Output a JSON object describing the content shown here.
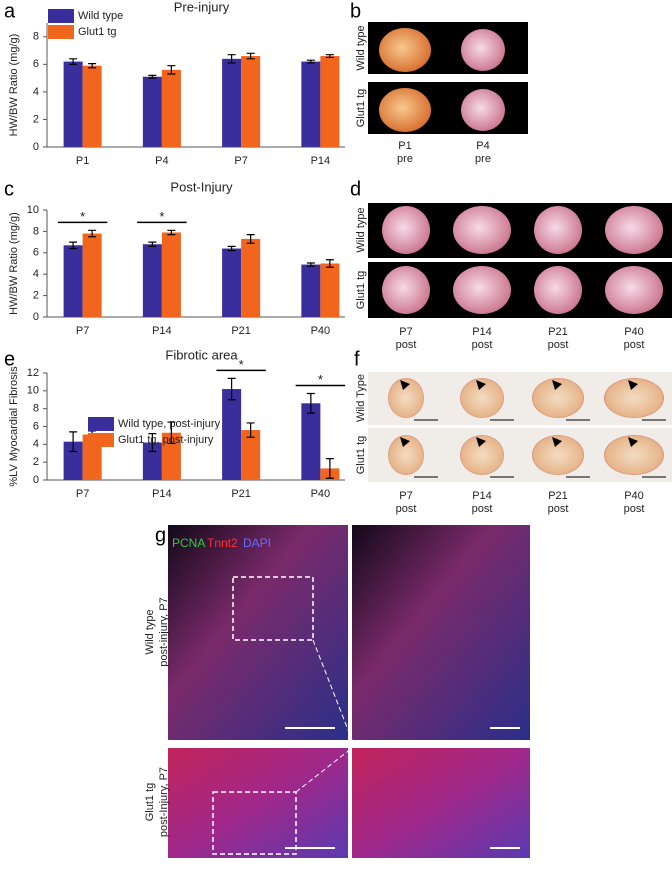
{
  "chart_data": [
    {
      "type": "bar",
      "panel": "a",
      "title": "Pre-injury",
      "ylabel": "HW/BW Ratio (mg/g)",
      "categories": [
        "P1",
        "P4",
        "P7",
        "P14"
      ],
      "series": [
        {
          "name": "Wild type",
          "color": "#3a2d9c",
          "values": [
            6.2,
            5.1,
            6.4,
            6.2
          ],
          "errors": [
            0.2,
            0.1,
            0.3,
            0.1
          ]
        },
        {
          "name": "Glut1 tg",
          "color": "#f2651c",
          "values": [
            5.9,
            5.6,
            6.6,
            6.6
          ],
          "errors": [
            0.15,
            0.3,
            0.2,
            0.1
          ]
        }
      ],
      "ylim": [
        0,
        9
      ],
      "yticks": [
        0,
        2,
        4,
        6,
        8
      ]
    },
    {
      "type": "bar",
      "panel": "c",
      "title": "Post-Injury",
      "ylabel": "HW/BW Ratio (mg/g)",
      "categories": [
        "P7",
        "P14",
        "P21",
        "P40"
      ],
      "series": [
        {
          "name": "Wild type",
          "color": "#3a2d9c",
          "values": [
            6.7,
            6.8,
            6.4,
            4.9
          ],
          "errors": [
            0.3,
            0.2,
            0.2,
            0.15
          ]
        },
        {
          "name": "Glut1 tg",
          "color": "#f2651c",
          "values": [
            7.8,
            7.9,
            7.3,
            5.0
          ],
          "errors": [
            0.3,
            0.2,
            0.4,
            0.35
          ]
        }
      ],
      "significance_labels": [
        "*",
        "*",
        null,
        null
      ],
      "ylim": [
        0,
        10
      ],
      "yticks": [
        0,
        2,
        4,
        6,
        8,
        10
      ]
    },
    {
      "type": "bar",
      "panel": "e",
      "title": "Fibrotic area",
      "ylabel": "%LV Myocardial Fibrosis",
      "categories": [
        "P7",
        "P14",
        "P21",
        "P40"
      ],
      "series": [
        {
          "name": "Wild type, post-injury",
          "color": "#3a2d9c",
          "values": [
            4.3,
            4.2,
            10.2,
            8.6
          ],
          "errors": [
            1.1,
            1.0,
            1.2,
            1.1
          ]
        },
        {
          "name": "Glut1 tg, post-injury",
          "color": "#f2651c",
          "values": [
            5.1,
            5.3,
            5.6,
            1.3
          ],
          "errors": [
            0.4,
            1.2,
            0.8,
            1.1
          ]
        }
      ],
      "significance_labels": [
        null,
        null,
        "*",
        "*"
      ],
      "ylim": [
        0,
        12
      ],
      "yticks": [
        0,
        2,
        4,
        6,
        8,
        10,
        12
      ]
    }
  ],
  "panels": {
    "b": {
      "label": "b",
      "rows": [
        "Wild type",
        "Glut1 tg"
      ],
      "columns": [
        {
          "time": "P1",
          "state": "pre"
        },
        {
          "time": "P4",
          "state": "pre"
        }
      ]
    },
    "d": {
      "label": "d",
      "rows": [
        "Wild type",
        "Glut1 tg"
      ],
      "columns": [
        {
          "time": "P7",
          "state": "post"
        },
        {
          "time": "P14",
          "state": "post"
        },
        {
          "time": "P21",
          "state": "post"
        },
        {
          "time": "P40",
          "state": "post"
        }
      ]
    },
    "f": {
      "label": "f",
      "rows": [
        "Wild Type",
        "Glut1 tg"
      ],
      "columns": [
        {
          "time": "P7",
          "state": "post"
        },
        {
          "time": "P14",
          "state": "post"
        },
        {
          "time": "P21",
          "state": "post"
        },
        {
          "time": "P40",
          "state": "post"
        }
      ]
    },
    "g": {
      "label": "g",
      "stains": [
        "PCNA",
        "Tnnt2",
        "DAPI"
      ],
      "rows": [
        [
          "Wild type",
          "post-injury, P7"
        ],
        [
          "Glut1 tg",
          "post-Injury, P7"
        ]
      ]
    }
  }
}
